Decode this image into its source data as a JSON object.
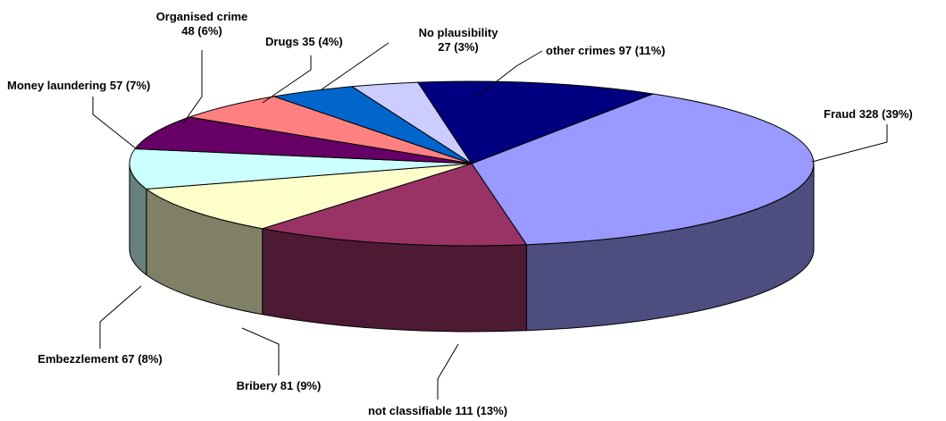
{
  "chart_data": {
    "type": "pie",
    "style": "3d",
    "slices": [
      {
        "label": "Fraud 328 (39%)",
        "category": "Fraud",
        "value": 328,
        "percent": 39,
        "color": "#9999FF"
      },
      {
        "label": "not classifiable 111 (13%)",
        "category": "not classifiable",
        "value": 111,
        "percent": 13,
        "color": "#993366"
      },
      {
        "label": "Bribery 81 (9%)",
        "category": "Bribery",
        "value": 81,
        "percent": 9,
        "color": "#FFFFCC"
      },
      {
        "label": "Embezzlement 67 (8%)",
        "category": "Embezzlement",
        "value": 67,
        "percent": 8,
        "color": "#CCFFFF"
      },
      {
        "label": "Money laundering 57 (7%)",
        "category": "Money laundering",
        "value": 57,
        "percent": 7,
        "color": "#660066"
      },
      {
        "label": "Organised crime 48 (6%)",
        "lines": [
          "Organised crime",
          "48 (6%)"
        ],
        "category": "Organised crime",
        "value": 48,
        "percent": 6,
        "color": "#FF8080"
      },
      {
        "label": "Drugs 35 (4%)",
        "category": "Drugs",
        "value": 35,
        "percent": 4,
        "color": "#0066CC"
      },
      {
        "label": "No plausibility 27 (3%)",
        "lines": [
          "No plausibility",
          "27 (3%)"
        ],
        "category": "No plausibility",
        "value": 27,
        "percent": 3,
        "color": "#CCCCFF"
      },
      {
        "label": "other crimes 97 (11%)",
        "category": "other crimes",
        "value": 97,
        "percent": 11,
        "color": "#000080"
      }
    ]
  }
}
